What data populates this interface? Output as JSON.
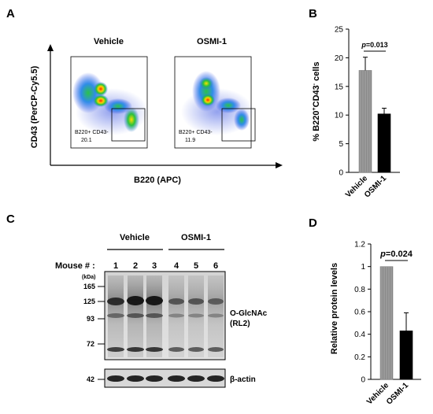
{
  "panel_letters": {
    "a": "A",
    "b": "B",
    "c": "C",
    "d": "D"
  },
  "panel_a": {
    "plot_titles": [
      "Vehicle",
      "OSMI-1"
    ],
    "x_axis_label": "B220 (APC)",
    "y_axis_label": "CD43 (PerCP-Cy5.5)",
    "gates": [
      {
        "label": "B220+ CD43-",
        "value": "20.1"
      },
      {
        "label": "B220+ CD43-",
        "value": "11.9"
      }
    ]
  },
  "panel_c": {
    "mouse_label": "Mouse # :",
    "kda_label": "(kDa)",
    "group_labels": [
      "Vehicle",
      "OSMI-1"
    ],
    "lanes": [
      "1",
      "2",
      "3",
      "4",
      "5",
      "6"
    ],
    "markers": [
      "165",
      "125",
      "93",
      "72",
      "42"
    ],
    "blot_label_line1": "O-GlcNAc",
    "blot_label_line2": "(RL2)",
    "actin_label": "β-actin"
  },
  "chart_data": [
    {
      "type": "bar",
      "panel": "B",
      "categories": [
        "Vehicle",
        "OSMI-1"
      ],
      "values": [
        17.8,
        10.2
      ],
      "errors": [
        2.3,
        1.0
      ],
      "colors": [
        "#8c8c8c",
        "#000000"
      ],
      "ylim": [
        0,
        25
      ],
      "yticks": [
        0,
        5,
        10,
        15,
        20,
        25
      ],
      "ylabel_parts": [
        "% B220",
        "+",
        "CD43",
        "-",
        " cells"
      ],
      "annotation": "p=0.013",
      "annotation_italic": "p",
      "annotation_rest": "=0.013"
    },
    {
      "type": "bar",
      "panel": "D",
      "categories": [
        "Vehicle",
        "OSMI-1"
      ],
      "values": [
        1.0,
        0.43
      ],
      "errors": [
        0.0,
        0.16
      ],
      "colors": [
        "#8c8c8c",
        "#000000"
      ],
      "ylim": [
        0,
        1.2
      ],
      "yticks": [
        "0",
        "0.2",
        "0.4",
        "0.6",
        "0.8",
        "1",
        "1.2"
      ],
      "ylabel": "Relative protein levels",
      "annotation": "p=0.024",
      "annotation_italic": "p",
      "annotation_rest": "=0.024"
    }
  ]
}
